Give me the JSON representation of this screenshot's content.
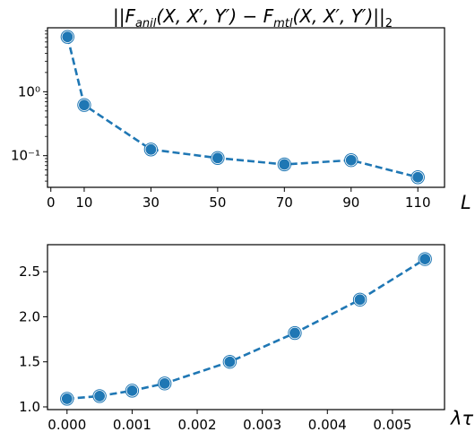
{
  "chart_data": [
    {
      "type": "line",
      "title": "||F_anil(X, X′, Y′) − F_mtl(X, X′, Y′)||₂",
      "xlabel": "L",
      "ylabel": "",
      "yscale": "log",
      "xlim": [
        -1,
        118
      ],
      "ylim": [
        0.032,
        10
      ],
      "xticks": [
        0,
        10,
        30,
        50,
        70,
        90,
        110
      ],
      "yticks": [
        {
          "value": 1,
          "label": "10⁰"
        },
        {
          "value": 0.1,
          "label": "10⁻¹"
        }
      ],
      "x": [
        5,
        10,
        30,
        50,
        70,
        90,
        110
      ],
      "series": [
        {
          "values": [
            7.2,
            0.62,
            0.125,
            0.092,
            0.073,
            0.085,
            0.046
          ]
        }
      ],
      "color": "#1f77b4",
      "line_style": "dashed",
      "marker": "circle",
      "grid": false
    },
    {
      "type": "line",
      "title": "",
      "xlabel": "λτ",
      "ylabel": "",
      "xlim": [
        -0.0003,
        0.0058
      ],
      "ylim": [
        0.97,
        2.8
      ],
      "xticks": [
        0,
        0.001,
        0.002,
        0.003,
        0.004,
        0.005
      ],
      "xtick_labels": [
        "0.000",
        "0.001",
        "0.002",
        "0.003",
        "0.004",
        "0.005"
      ],
      "yticks": [
        1.0,
        1.5,
        2.0,
        2.5
      ],
      "ytick_labels": [
        "1.0",
        "1.5",
        "2.0",
        "2.5"
      ],
      "x": [
        0,
        0.0005,
        0.001,
        0.0015,
        0.0025,
        0.0035,
        0.0045,
        0.0055
      ],
      "series": [
        {
          "values": [
            1.09,
            1.12,
            1.18,
            1.26,
            1.5,
            1.82,
            2.19,
            2.64
          ]
        }
      ],
      "color": "#1f77b4",
      "line_style": "dashed",
      "marker": "circle",
      "grid": false
    }
  ]
}
